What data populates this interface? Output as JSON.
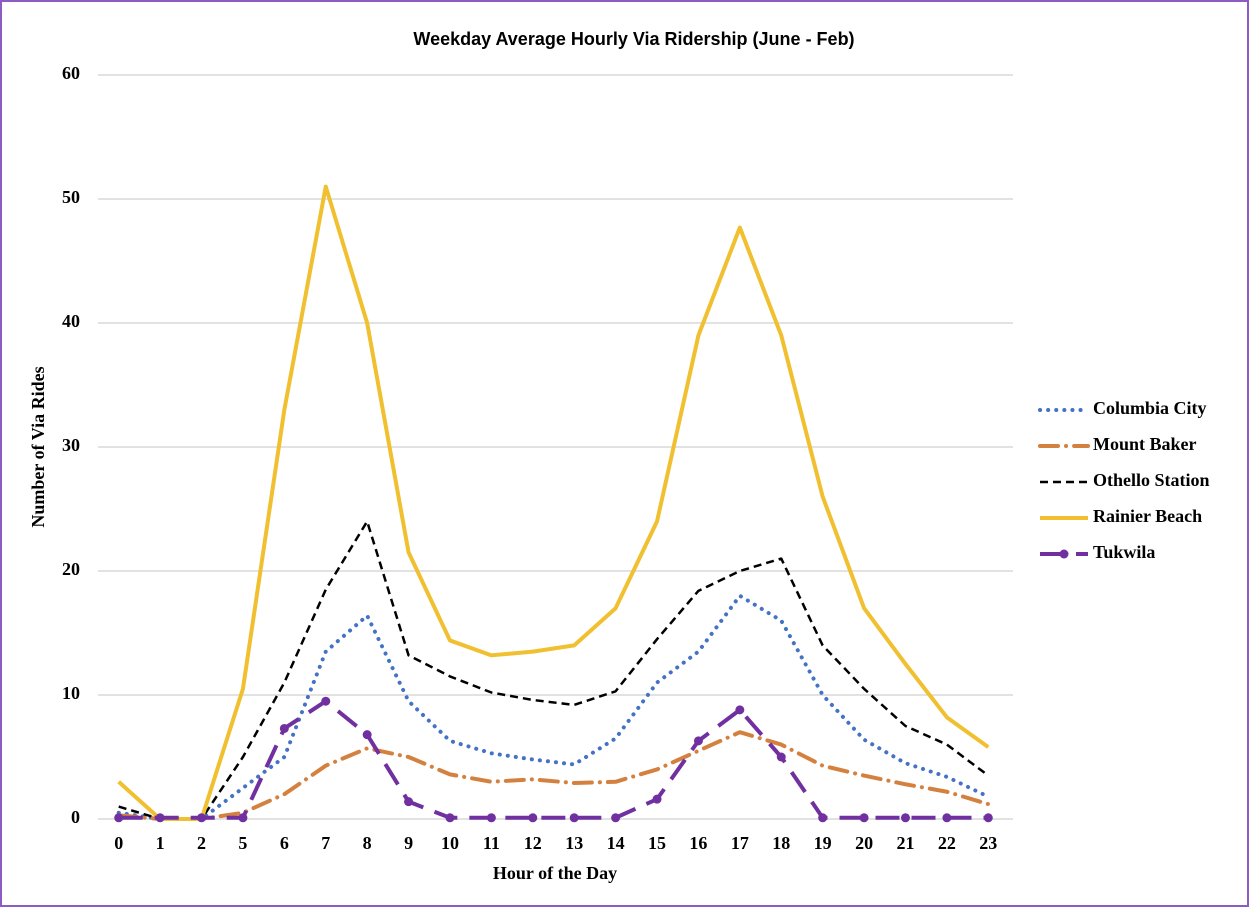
{
  "chart_data": {
    "type": "line",
    "title": "Weekday Average Hourly Via Ridership (June - Feb)",
    "x_label": "Hour of the Day",
    "y_label": "Number of Via Rides",
    "categories": [
      "0",
      "1",
      "2",
      "5",
      "6",
      "7",
      "8",
      "9",
      "10",
      "11",
      "12",
      "13",
      "14",
      "15",
      "16",
      "17",
      "18",
      "19",
      "20",
      "21",
      "22",
      "23"
    ],
    "series": [
      {
        "name": "Columbia City",
        "color": "#4472c4",
        "dash": "dotted",
        "values": [
          0.5,
          0,
          0,
          2.5,
          5,
          13.5,
          16.4,
          9.5,
          6.3,
          5.3,
          4.8,
          4.4,
          6.5,
          11,
          13.5,
          18,
          16,
          10,
          6.4,
          4.5,
          3.4,
          1.8
        ]
      },
      {
        "name": "Mount Baker",
        "color": "#d4813f",
        "dash": "dash-dot",
        "values": [
          0.3,
          0,
          0,
          0.5,
          2,
          4.3,
          5.7,
          5,
          3.6,
          3,
          3.2,
          2.9,
          3,
          4,
          5.5,
          7,
          6,
          4.3,
          3.5,
          2.8,
          2.2,
          1.2
        ]
      },
      {
        "name": "Othello Station",
        "color": "#000000",
        "dash": "dashed",
        "values": [
          1,
          0,
          0,
          5,
          11,
          18.5,
          24,
          13.2,
          11.5,
          10.2,
          9.6,
          9.2,
          10.3,
          14.5,
          18.4,
          20,
          21,
          14,
          10.5,
          7.5,
          6,
          3.5
        ]
      },
      {
        "name": "Rainier Beach",
        "color": "#f0c030",
        "dash": "solid",
        "values": [
          3,
          0,
          0,
          10.5,
          33,
          51,
          40,
          21.5,
          14.4,
          13.2,
          13.5,
          14,
          17,
          24,
          39,
          47.7,
          39,
          26,
          17,
          12.5,
          8.2,
          5.8
        ]
      },
      {
        "name": "Tukwila",
        "color": "#7030a0",
        "dash": "long-dash",
        "marker": "circle",
        "values": [
          0.1,
          0.1,
          0.1,
          0.1,
          7.3,
          9.5,
          6.8,
          1.4,
          0.1,
          0.1,
          0.1,
          0.1,
          0.1,
          1.6,
          6.3,
          8.8,
          5,
          0.1,
          0.1,
          0.1,
          0.1,
          0.1
        ]
      }
    ],
    "ylim": [
      0,
      60
    ],
    "yticks": [
      0,
      10,
      20,
      30,
      40,
      50,
      60
    ],
    "grid": true,
    "legend": "right"
  }
}
